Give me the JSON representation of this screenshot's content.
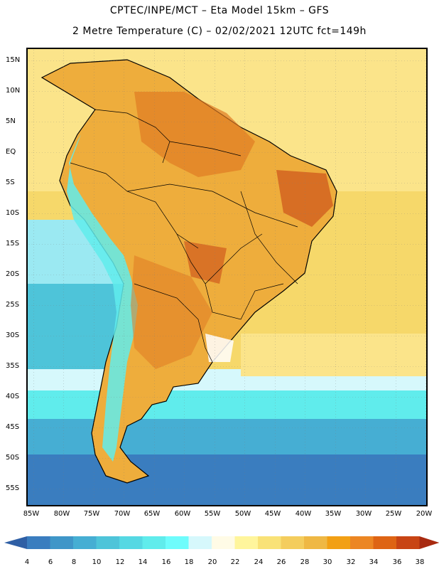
{
  "header": {
    "line1": "CPTEC/INPE/MCT –  Eta Model 15km – GFS",
    "line2": "2 Metre Temperature (C) – 02/02/2021 12UTC fct=149h"
  },
  "map": {
    "lat_labels": [
      "15N",
      "10N",
      "5N",
      "EQ",
      "5S",
      "10S",
      "15S",
      "20S",
      "25S",
      "30S",
      "35S",
      "40S",
      "45S",
      "50S",
      "55S"
    ],
    "lon_labels": [
      "85W",
      "80W",
      "75W",
      "70W",
      "65W",
      "60W",
      "55W",
      "50W",
      "45W",
      "40W",
      "35W",
      "30W",
      "25W",
      "20W"
    ]
  },
  "colorbar": {
    "levels": [
      "4",
      "6",
      "8",
      "10",
      "12",
      "14",
      "16",
      "18",
      "20",
      "22",
      "24",
      "26",
      "28",
      "30",
      "32",
      "34",
      "36",
      "38"
    ],
    "colors": [
      "#2f5fa5",
      "#3a7dbf",
      "#3f96c8",
      "#46aed3",
      "#4ec4d9",
      "#55d8e3",
      "#60ecec",
      "#6efcfc",
      "#d6f8fc",
      "#fffbe6",
      "#fff59c",
      "#f9e277",
      "#f4cd5d",
      "#efb844",
      "#f2a014",
      "#ec8623",
      "#de6414",
      "#c84414",
      "#a82a10"
    ]
  }
}
